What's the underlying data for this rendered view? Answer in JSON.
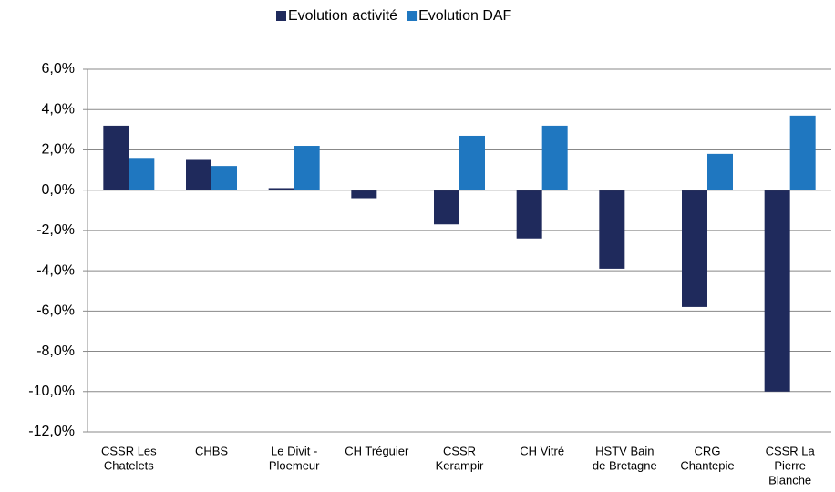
{
  "chart_data": {
    "type": "bar",
    "categories": [
      [
        "CSSR Les",
        "Chatelets"
      ],
      [
        "CHBS"
      ],
      [
        "Le Divit -",
        "Ploemeur"
      ],
      [
        "CH Tréguier"
      ],
      [
        "CSSR",
        "Kerampir"
      ],
      [
        "CH Vitré"
      ],
      [
        "HSTV Bain",
        "de Bretagne"
      ],
      [
        "CRG",
        "Chantepie"
      ],
      [
        "CSSR La",
        "Pierre",
        "Blanche"
      ]
    ],
    "series": [
      {
        "name": "Evolution activité",
        "color": "#1f2a5c",
        "values": [
          3.2,
          1.5,
          0.1,
          -0.4,
          -1.7,
          -2.4,
          -3.9,
          -5.8,
          -10.0
        ]
      },
      {
        "name": "Evolution DAF",
        "color": "#1f77c0",
        "values": [
          1.6,
          1.2,
          2.2,
          0,
          2.7,
          3.2,
          0,
          1.8,
          3.7
        ]
      }
    ],
    "ylim": [
      -12,
      6
    ],
    "yticks": [
      {
        "value": -12,
        "label": "-12,0%"
      },
      {
        "value": -10,
        "label": "-10,0%"
      },
      {
        "value": -8,
        "label": "-8,0%"
      },
      {
        "value": -6,
        "label": "-6,0%"
      },
      {
        "value": -4,
        "label": "-4,0%"
      },
      {
        "value": -2,
        "label": "-2,0%"
      },
      {
        "value": 0,
        "label": "0,0%"
      },
      {
        "value": 2,
        "label": "2,0%"
      },
      {
        "value": 4,
        "label": "4,0%"
      },
      {
        "value": 6,
        "label": "6,0%"
      }
    ],
    "grid": true,
    "legend": "top"
  }
}
